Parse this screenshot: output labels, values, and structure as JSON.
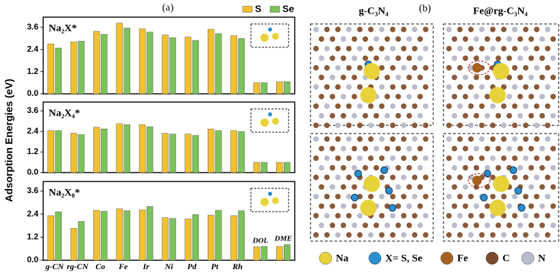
{
  "figure": {
    "panel_a": "(a)",
    "panel_b": "(b)",
    "ylabel": "Adsorption Energies (eV)"
  },
  "chart_data": [
    {
      "type": "bar",
      "label": "Na₂X*",
      "ylim": [
        0,
        4.15
      ],
      "yticks": [
        {
          "value": 0,
          "label": "0.0"
        },
        1.2,
        2.4,
        3.6
      ],
      "series": [
        {
          "name": "S",
          "color": "#f2c12e",
          "values": [
            2.7,
            2.81,
            3.38,
            3.83,
            3.52,
            3.19,
            3.08,
            3.49,
            3.15,
            0.6,
            0.65
          ]
        },
        {
          "name": "Se",
          "color": "#7cc35a",
          "values": [
            2.48,
            2.85,
            3.22,
            3.56,
            3.34,
            3.04,
            2.89,
            3.26,
            3.0,
            0.6,
            0.66
          ]
        }
      ]
    },
    {
      "type": "bar",
      "label": "Na₂X₄*",
      "ylim": [
        0,
        4.12
      ],
      "yticks": [
        {
          "value": 0,
          "label": "0.0"
        },
        1.2,
        2.4,
        3.6
      ],
      "series": [
        {
          "color": "#f2c12e",
          "values": [
            2.45,
            2.3,
            2.65,
            2.85,
            2.8,
            2.3,
            2.25,
            2.55,
            2.45,
            0.6,
            0.6
          ]
        },
        {
          "color": "#7cc35a",
          "values": [
            2.45,
            2.22,
            2.55,
            2.8,
            2.68,
            2.25,
            2.17,
            2.45,
            2.4,
            0.6,
            0.6
          ]
        }
      ]
    },
    {
      "type": "bar",
      "label": "Na₂X₈*",
      "ylim": [
        0,
        4.1
      ],
      "yticks": [
        {
          "value": 0,
          "label": "0.0"
        },
        1.2,
        2.4,
        3.6
      ],
      "categories": [
        "g-CN",
        "rg-CN",
        "Co",
        "Fe",
        "Ir",
        "Ni",
        "Pd",
        "Pt",
        "Rh",
        "DOL",
        "DME"
      ],
      "series": [
        {
          "color": "#f2c12e",
          "values": [
            2.32,
            1.66,
            2.6,
            2.68,
            2.62,
            2.22,
            2.15,
            2.35,
            2.32,
            0.7,
            0.72
          ]
        },
        {
          "color": "#7cc35a",
          "values": [
            2.52,
            2.02,
            2.55,
            2.58,
            2.8,
            2.18,
            2.38,
            2.6,
            2.58,
            0.72,
            0.82
          ]
        }
      ]
    }
  ],
  "panel_b": {
    "titles": [
      "g-C₃N₄",
      "Fe@rg-C₃N₄"
    ],
    "legend": [
      {
        "label": "Na",
        "color": "#e8d23a"
      },
      {
        "label": "X= S, Se",
        "color": "#2a8fd0"
      },
      {
        "label": "Fe",
        "color": "#a8621f"
      },
      {
        "label": "C",
        "color": "#7a4a2e"
      },
      {
        "label": "N",
        "color": "#b8bccb"
      }
    ]
  }
}
